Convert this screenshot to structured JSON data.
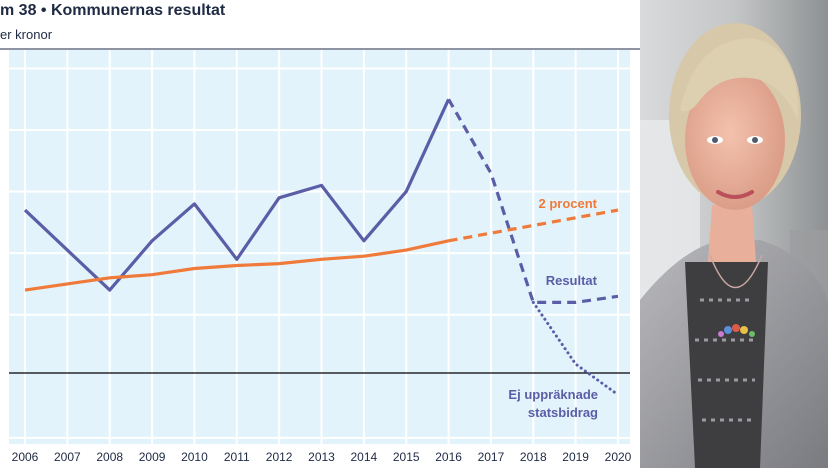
{
  "header": {
    "title": "m 38 • Kommunernas resultat",
    "subtitle": "er kronor"
  },
  "colors": {
    "plot_bg": "#e3f3fc",
    "grid": "#ffffff",
    "resultat": "#5b5ea6",
    "procent": "#f07a3a",
    "ej": "#5b5ea6",
    "text": "#1f2a44",
    "zero_line": "#000000"
  },
  "chart_data": {
    "type": "line",
    "x": [
      2006,
      2007,
      2008,
      2009,
      2010,
      2011,
      2012,
      2013,
      2014,
      2015,
      2016,
      2017,
      2018,
      2019,
      2020
    ],
    "xtick_labels": [
      "2006",
      "2007",
      "2008",
      "2009",
      "2010",
      "2011",
      "2012",
      "2013",
      "2014",
      "2015",
      "2016",
      "2017",
      "2018",
      "2019",
      "2020"
    ],
    "ytick_labels": [],
    "ylim": [
      -1.1,
      5.3
    ],
    "grid": true,
    "series": [
      {
        "name": "Resultat",
        "color": "#5b5ea6",
        "values": [
          2.7,
          null,
          1.4,
          2.2,
          2.8,
          1.9,
          2.9,
          3.1,
          2.2,
          3.0,
          4.5,
          null,
          1.2,
          null,
          1.3
        ],
        "projection_from": 2016,
        "projected_values": [
          [
            2016,
            4.5
          ],
          [
            2017,
            3.3
          ],
          [
            2018,
            1.2
          ],
          [
            2019,
            1.2
          ],
          [
            2020,
            1.3
          ]
        ]
      },
      {
        "name": "2 procent",
        "color": "#f07a3a",
        "values": [
          1.4,
          null,
          1.6,
          1.65,
          1.75,
          1.8,
          1.83,
          1.9,
          1.95,
          2.05,
          2.2,
          null,
          null,
          null,
          2.7
        ],
        "projection_from": 2016,
        "projected_values": [
          [
            2016,
            2.2
          ],
          [
            2020,
            2.7
          ]
        ]
      },
      {
        "name": "Ej uppräknade statsbidrag",
        "color": "#5b5ea6",
        "projected_values": [
          [
            2018,
            1.2
          ],
          [
            2019,
            0.2
          ],
          [
            2020,
            -0.3
          ]
        ]
      }
    ],
    "annotations": [
      {
        "text": "2 procent",
        "series": "2 procent"
      },
      {
        "text": "Resultat",
        "series": "Resultat"
      },
      {
        "text": "Ej uppräknade",
        "series": "Ej uppräknade statsbidrag"
      },
      {
        "text": "statsbidrag",
        "series": "Ej uppräknade statsbidrag"
      }
    ]
  }
}
